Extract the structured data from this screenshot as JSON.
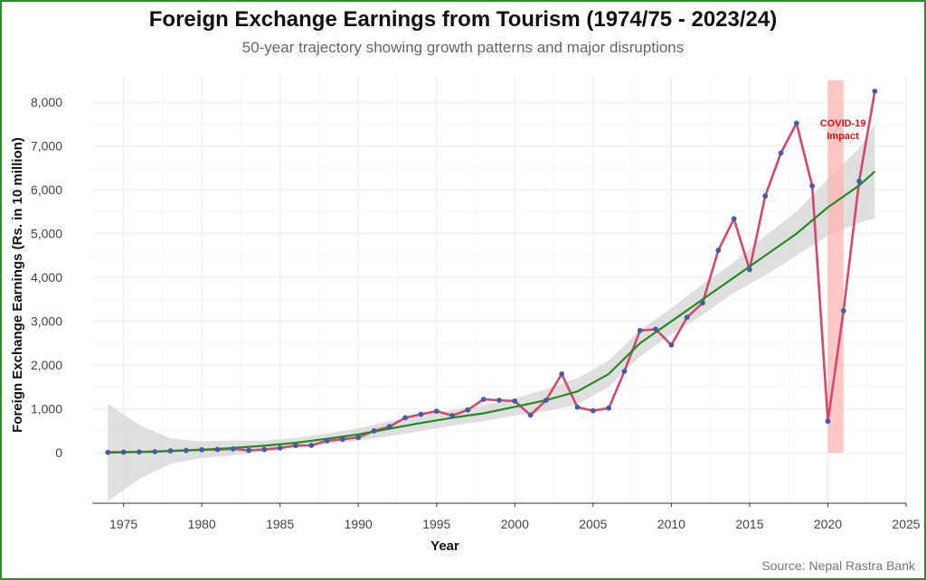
{
  "title": "Foreign Exchange Earnings from Tourism (1974/75 - 2023/24)",
  "subtitle": "50-year trajectory showing growth patterns and major disruptions",
  "source": "Source: Nepal Rastra Bank",
  "colors": {
    "frame": "#2e8b2e",
    "line": "#d6476b",
    "points": "#3b5fa8",
    "trend": "#228b22",
    "ribbon": "#d9d9d9",
    "covid_band": "#ffb3b3",
    "annotation": "#dd1111"
  },
  "chart_data": {
    "type": "line",
    "title": "Foreign Exchange Earnings from Tourism (1974/75 - 2023/24)",
    "subtitle": "50-year trajectory showing growth patterns and major disruptions",
    "xlabel": "Year",
    "ylabel": "Foreign Exchange Earnings (Rs. in 10 million)",
    "xlim": [
      1973,
      2025
    ],
    "ylim": [
      -1150,
      8600
    ],
    "x_ticks": [
      1975,
      1980,
      1985,
      1990,
      1995,
      2000,
      2005,
      2010,
      2015,
      2020,
      2025
    ],
    "y_ticks": [
      0,
      1000,
      2000,
      3000,
      4000,
      5000,
      6000,
      7000,
      8000
    ],
    "y_tick_labels": [
      "0",
      "1,000",
      "2,000",
      "3,000",
      "4,000",
      "5,000",
      "6,000",
      "7,000",
      "8,000"
    ],
    "grid": true,
    "series": [
      {
        "style": "line+points",
        "x": [
          1974,
          1975,
          1976,
          1977,
          1978,
          1979,
          1980,
          1981,
          1982,
          1983,
          1984,
          1985,
          1986,
          1987,
          1988,
          1989,
          1990,
          1991,
          1992,
          1993,
          1994,
          1995,
          1996,
          1997,
          1998,
          1999,
          2000,
          2001,
          2002,
          2003,
          2004,
          2005,
          2006,
          2007,
          2008,
          2009,
          2010,
          2011,
          2012,
          2013,
          2014,
          2015,
          2016,
          2017,
          2018,
          2019,
          2020,
          2021,
          2022,
          2023
        ],
        "values": [
          10,
          15,
          20,
          25,
          45,
          55,
          70,
          75,
          90,
          55,
          75,
          110,
          165,
          170,
          275,
          310,
          350,
          500,
          600,
          800,
          880,
          950,
          850,
          980,
          1220,
          1200,
          1180,
          860,
          1200,
          1800,
          1040,
          960,
          1020,
          1860,
          2790,
          2820,
          2460,
          3090,
          3420,
          4620,
          5340,
          4180,
          5860,
          6840,
          7520,
          6090,
          720,
          3240,
          6200,
          8250
        ]
      },
      {
        "style": "smooth-trend",
        "x": [
          1974,
          1976,
          1978,
          1980,
          1982,
          1984,
          1986,
          1988,
          1990,
          1992,
          1994,
          1996,
          1998,
          2000,
          2002,
          2004,
          2006,
          2008,
          2010,
          2012,
          2014,
          2016,
          2018,
          2020,
          2022,
          2023
        ],
        "values": [
          5,
          20,
          40,
          70,
          110,
          160,
          230,
          320,
          420,
          550,
          680,
          800,
          900,
          1050,
          1200,
          1400,
          1800,
          2500,
          3000,
          3500,
          4000,
          4500,
          5000,
          5600,
          6100,
          6420
        ],
        "ci_lower": [
          -1100,
          -600,
          -250,
          -120,
          -60,
          40,
          120,
          200,
          280,
          380,
          500,
          620,
          720,
          850,
          950,
          1100,
          1500,
          2200,
          2700,
          3150,
          3650,
          4050,
          4500,
          4950,
          5250,
          5350
        ],
        "ci_upper": [
          1120,
          640,
          330,
          260,
          280,
          280,
          340,
          440,
          560,
          720,
          860,
          980,
          1080,
          1250,
          1450,
          1700,
          2100,
          2800,
          3300,
          3850,
          4350,
          4950,
          5500,
          6250,
          6950,
          7500
        ]
      }
    ],
    "highlight_band": {
      "x_start": 2020,
      "x_end": 2021,
      "label_line1": "COVID-19",
      "label_line2": "Impact",
      "label_y": 7200
    }
  }
}
